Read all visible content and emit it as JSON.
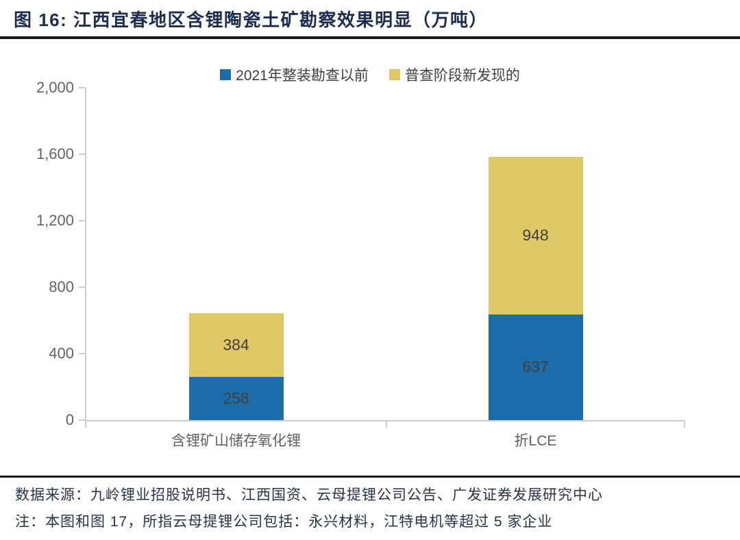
{
  "figure": {
    "title": "图 16:  江西宜春地区含锂陶瓷土矿勘察效果明显（万吨）"
  },
  "chart_data": {
    "type": "bar",
    "stacked": true,
    "title": "江西宜春地区含锂陶瓷土矿勘察效果明显",
    "unit": "万吨",
    "categories": [
      "含锂矿山储存氧化锂",
      "折LCE"
    ],
    "series": [
      {
        "name": "2021年整装勘查以前",
        "color": "#1b6ca8",
        "values": [
          258,
          637
        ]
      },
      {
        "name": "普查阶段新发现的",
        "color": "#e2c766",
        "values": [
          384,
          948
        ]
      }
    ],
    "ylim": [
      0,
      2000
    ],
    "ytick_step": 400,
    "ytick_labels": [
      "0",
      "400",
      "800",
      "1,200",
      "1,600",
      "2,000"
    ],
    "legend_position": "top-center",
    "grid": false,
    "axis_color": "#cdcdcd",
    "value_label_color": "#413e3a"
  },
  "footer": {
    "source": "数据来源：九岭锂业招股说明书、江西国资、云母提锂公司公告、广发证券发展研究中心",
    "note": "注：本图和图 17，所指云母提锂公司包括：永兴材料，江特电机等超过 5 家企业"
  }
}
